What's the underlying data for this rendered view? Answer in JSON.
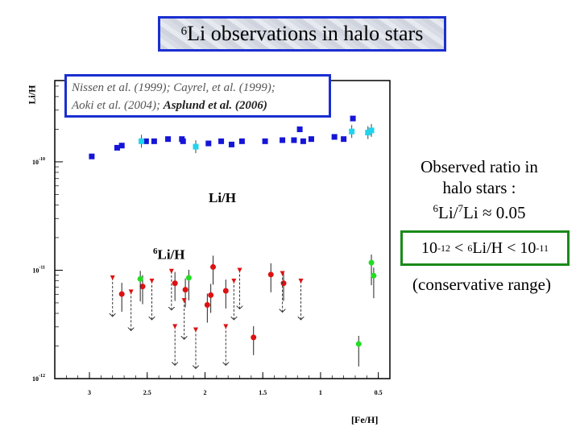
{
  "title": {
    "sup": "6",
    "text": "Li observations in halo stars"
  },
  "references": {
    "line1": "Nissen et al. (1999); Cayrel, et al. (1999);",
    "line2_plain": "Aoki et al. (2004); ",
    "line2_bold": "Asplund et al. (2006)"
  },
  "axes": {
    "ylabel": "Li/H",
    "xlabel": "[Fe/H]"
  },
  "series_labels": {
    "lih": "Li/H",
    "li6h_sup": "6",
    "li6h_text": "Li/H"
  },
  "annotation": {
    "line1": "Observed ratio in",
    "line2": "halo stars :",
    "ratio_sup1": "6",
    "ratio_mid": "Li/",
    "ratio_sup2": "7",
    "ratio_end": "Li ≈ 0.05"
  },
  "range": {
    "a": "10",
    "a_sup": "-12",
    "b": " < ",
    "c_sup": "6",
    "c": "Li/H < 10",
    "d_sup": "-11"
  },
  "range_note": "(conservative range)",
  "colors": {
    "blue": "#1515d8",
    "cyan": "#22d3ee",
    "red": "#dd1111",
    "green": "#22dd22",
    "frame_blue": "#1a2fd0",
    "frame_green": "#1a8a1a"
  },
  "chart_data": {
    "type": "scatter",
    "xaxis": {
      "reversed": true,
      "range": [
        3.3,
        0.4
      ],
      "ticks": [
        3,
        2.5,
        2,
        1.5,
        1,
        0.5
      ],
      "tick_labels": [
        "3",
        "2.5",
        "2",
        "1.5",
        "1",
        "0.5"
      ]
    },
    "yaxis": {
      "log": true,
      "range_exp": [
        -12,
        -9.25
      ],
      "ticks_exp": [
        -12,
        -11,
        -10
      ],
      "tick_labels": [
        {
          "base": "10",
          "exp": "-12"
        },
        {
          "base": "10",
          "exp": "-11"
        },
        {
          "base": "10",
          "exp": "-10"
        }
      ]
    },
    "series": [
      {
        "marker": "blue-square",
        "points": [
          [
            2.98,
            -9.95
          ],
          [
            2.76,
            -9.87
          ],
          [
            2.72,
            -9.85
          ],
          [
            2.51,
            -9.81
          ],
          [
            2.44,
            -9.81
          ],
          [
            2.32,
            -9.79
          ],
          [
            2.2,
            -9.79
          ],
          [
            2.19,
            -9.81
          ],
          [
            1.97,
            -9.83
          ],
          [
            1.86,
            -9.81
          ],
          [
            1.77,
            -9.84
          ],
          [
            1.68,
            -9.81
          ],
          [
            1.48,
            -9.81
          ],
          [
            1.33,
            -9.8
          ],
          [
            1.23,
            -9.8
          ],
          [
            1.18,
            -9.7
          ],
          [
            1.15,
            -9.81
          ],
          [
            1.08,
            -9.79
          ],
          [
            0.88,
            -9.77
          ],
          [
            0.8,
            -9.79
          ],
          [
            0.72,
            -9.6
          ]
        ]
      },
      {
        "marker": "cyan-square",
        "points": [
          [
            2.55,
            -9.81
          ],
          [
            2.08,
            -9.86
          ],
          [
            0.73,
            -9.72
          ],
          [
            0.59,
            -9.73
          ],
          [
            0.56,
            -9.71
          ]
        ]
      },
      {
        "marker": "red-dot",
        "points": [
          [
            2.72,
            -11.22
          ],
          [
            2.54,
            -11.15
          ],
          [
            2.26,
            -11.12
          ],
          [
            2.17,
            -11.18
          ],
          [
            1.98,
            -11.32
          ],
          [
            1.95,
            -11.23
          ],
          [
            1.93,
            -10.97
          ],
          [
            1.82,
            -11.19
          ],
          [
            1.58,
            -11.62
          ],
          [
            1.43,
            -11.04
          ],
          [
            1.32,
            -11.12
          ]
        ]
      },
      {
        "marker": "green-dot",
        "points": [
          [
            2.56,
            -11.08
          ],
          [
            2.14,
            -11.07
          ],
          [
            0.67,
            -11.68
          ],
          [
            0.56,
            -10.93
          ],
          [
            0.54,
            -11.05
          ]
        ]
      },
      {
        "marker": "red-upper-limit",
        "points": [
          [
            2.8,
            -11.07
          ],
          [
            2.64,
            -11.2
          ],
          [
            2.46,
            -11.1
          ],
          [
            2.29,
            -11.01
          ],
          [
            2.26,
            -11.52
          ],
          [
            2.18,
            -11.28
          ],
          [
            2.08,
            -11.55
          ],
          [
            1.82,
            -11.52
          ],
          [
            1.75,
            -11.1
          ],
          [
            1.7,
            -11.0
          ],
          [
            1.33,
            -11.03
          ],
          [
            1.17,
            -11.1
          ]
        ]
      }
    ]
  }
}
